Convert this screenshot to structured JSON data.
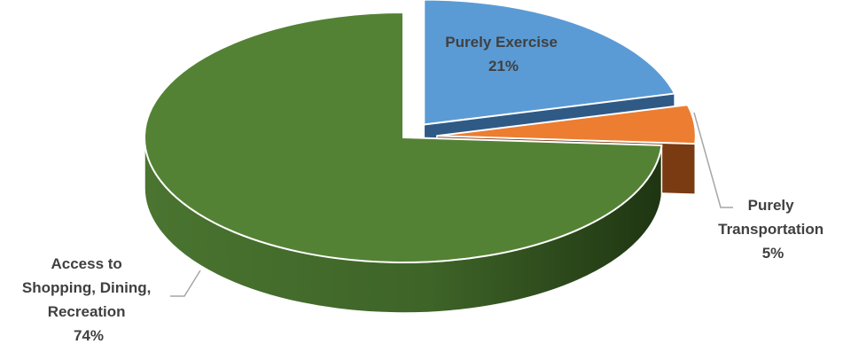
{
  "chart_data": {
    "type": "pie",
    "title": "",
    "slices": [
      {
        "name": "Purely Exercise",
        "value": 21,
        "label_lines": [
          "Purely Exercise"
        ],
        "pct_label": "21%",
        "color": "#5b9bd5",
        "dark": "#2f5a85",
        "exploded": true
      },
      {
        "name": "Purely Transportation",
        "value": 5,
        "label_lines": [
          "Purely",
          "Transportation"
        ],
        "pct_label": "5%",
        "color": "#ed7d31",
        "dark": "#7a3a12",
        "exploded": true
      },
      {
        "name": "Access to Shopping, Dining, Recreation",
        "value": 74,
        "label_lines": [
          "Access to",
          "Shopping, Dining,",
          "Recreation"
        ],
        "pct_label": "74%",
        "color": "#548235",
        "dark": "#2e4a1c",
        "exploded": false
      }
    ],
    "legend": "none",
    "three_d": true
  }
}
